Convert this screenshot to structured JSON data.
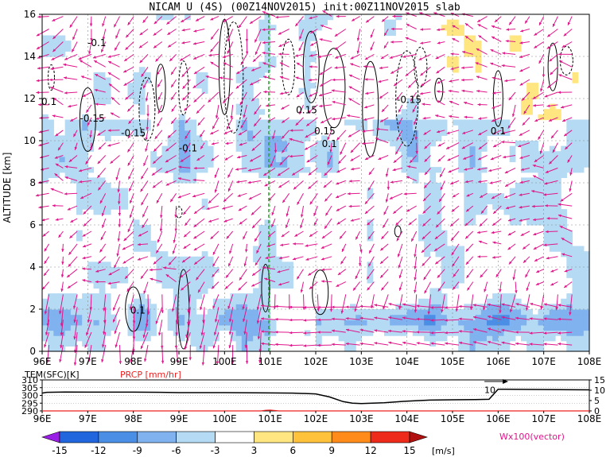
{
  "chart_data": [
    {
      "type": "heatmap",
      "title": "NICAM U (4S) (00Z14NOV2015) init:00Z11NOV2015 slab",
      "ylabel": "ALTITUDE [km]",
      "xlabel": "",
      "xlim": [
        96,
        108
      ],
      "ylim": [
        0,
        16
      ],
      "x_ticks": [
        "96E",
        "97E",
        "98E",
        "99E",
        "100E",
        "101E",
        "102E",
        "103E",
        "104E",
        "105E",
        "106E",
        "107E",
        "108E"
      ],
      "y_ticks": [
        "0",
        "2",
        "4",
        "6",
        "8",
        "10",
        "12",
        "14",
        "16"
      ],
      "grid": true,
      "colorbar": {
        "levels": [
          -15,
          -12,
          -9,
          -6,
          -3,
          3,
          6,
          9,
          12,
          15
        ],
        "tick_labels": [
          "-15",
          "-12",
          "-9",
          "-6",
          "-3",
          "3",
          "6",
          "9",
          "12",
          "15"
        ],
        "colors": [
          "#9a1fe6",
          "#2266dd",
          "#4a8ee6",
          "#7fb2ee",
          "#b4daf4",
          "#ffffff",
          "#ffe680",
          "#ffc23a",
          "#ff8c1a",
          "#ee2a1a",
          "#b01010"
        ],
        "unit": "[m/s]",
        "vector_note": "Wx100(vector)"
      },
      "contour_labels": [
        "-0.1",
        "0.1",
        "-0.15",
        "0.15",
        "-0.15",
        "0.15",
        "-0.15",
        "0.1",
        "0.1",
        "-0.1",
        "0.1"
      ],
      "vector_color": "#e0168a",
      "marker_line": {
        "x": 100.97,
        "color": "#22aa22"
      }
    },
    {
      "type": "line",
      "x_ticks": [
        "96E",
        "97E",
        "98E",
        "99E",
        "100E",
        "101E",
        "102E",
        "103E",
        "104E",
        "105E",
        "106E",
        "107E",
        "108E"
      ],
      "xlim": [
        96,
        108
      ],
      "series": [
        {
          "name": "TEM(SFC)[K]",
          "color": "#000000",
          "x": [
            96,
            96.1,
            96.5,
            97,
            98,
            98.6,
            99,
            99.5,
            100,
            101,
            101.5,
            102,
            102.3,
            102.6,
            102.8,
            103,
            103.5,
            104,
            104.5,
            105,
            105.5,
            105.8,
            106,
            107,
            108
          ],
          "y": [
            301.5,
            302,
            302.2,
            302.1,
            302.1,
            302,
            301.8,
            301.8,
            301.8,
            301.6,
            301.5,
            301,
            299,
            296,
            295,
            294.7,
            295.3,
            296.3,
            297,
            297.2,
            297.3,
            297.5,
            304,
            303.8,
            303.6
          ]
        },
        {
          "name": "PRCP [mm/hr]",
          "color": "#ee2222",
          "x": [
            96,
            100.8,
            100.9,
            101.0,
            101.2,
            108
          ],
          "y": [
            0,
            0,
            0.3,
            0.4,
            0,
            0
          ]
        }
      ],
      "y_left": {
        "label": "TEM(SFC)[K]",
        "ticks": [
          "290",
          "295",
          "300",
          "305",
          "310"
        ],
        "range": [
          290,
          310
        ]
      },
      "y_right": {
        "label": "PRCP [mm/hr]",
        "ticks": [
          "0",
          "5",
          "10",
          "15"
        ],
        "range": [
          0,
          15
        ]
      },
      "annotation": "10"
    }
  ]
}
